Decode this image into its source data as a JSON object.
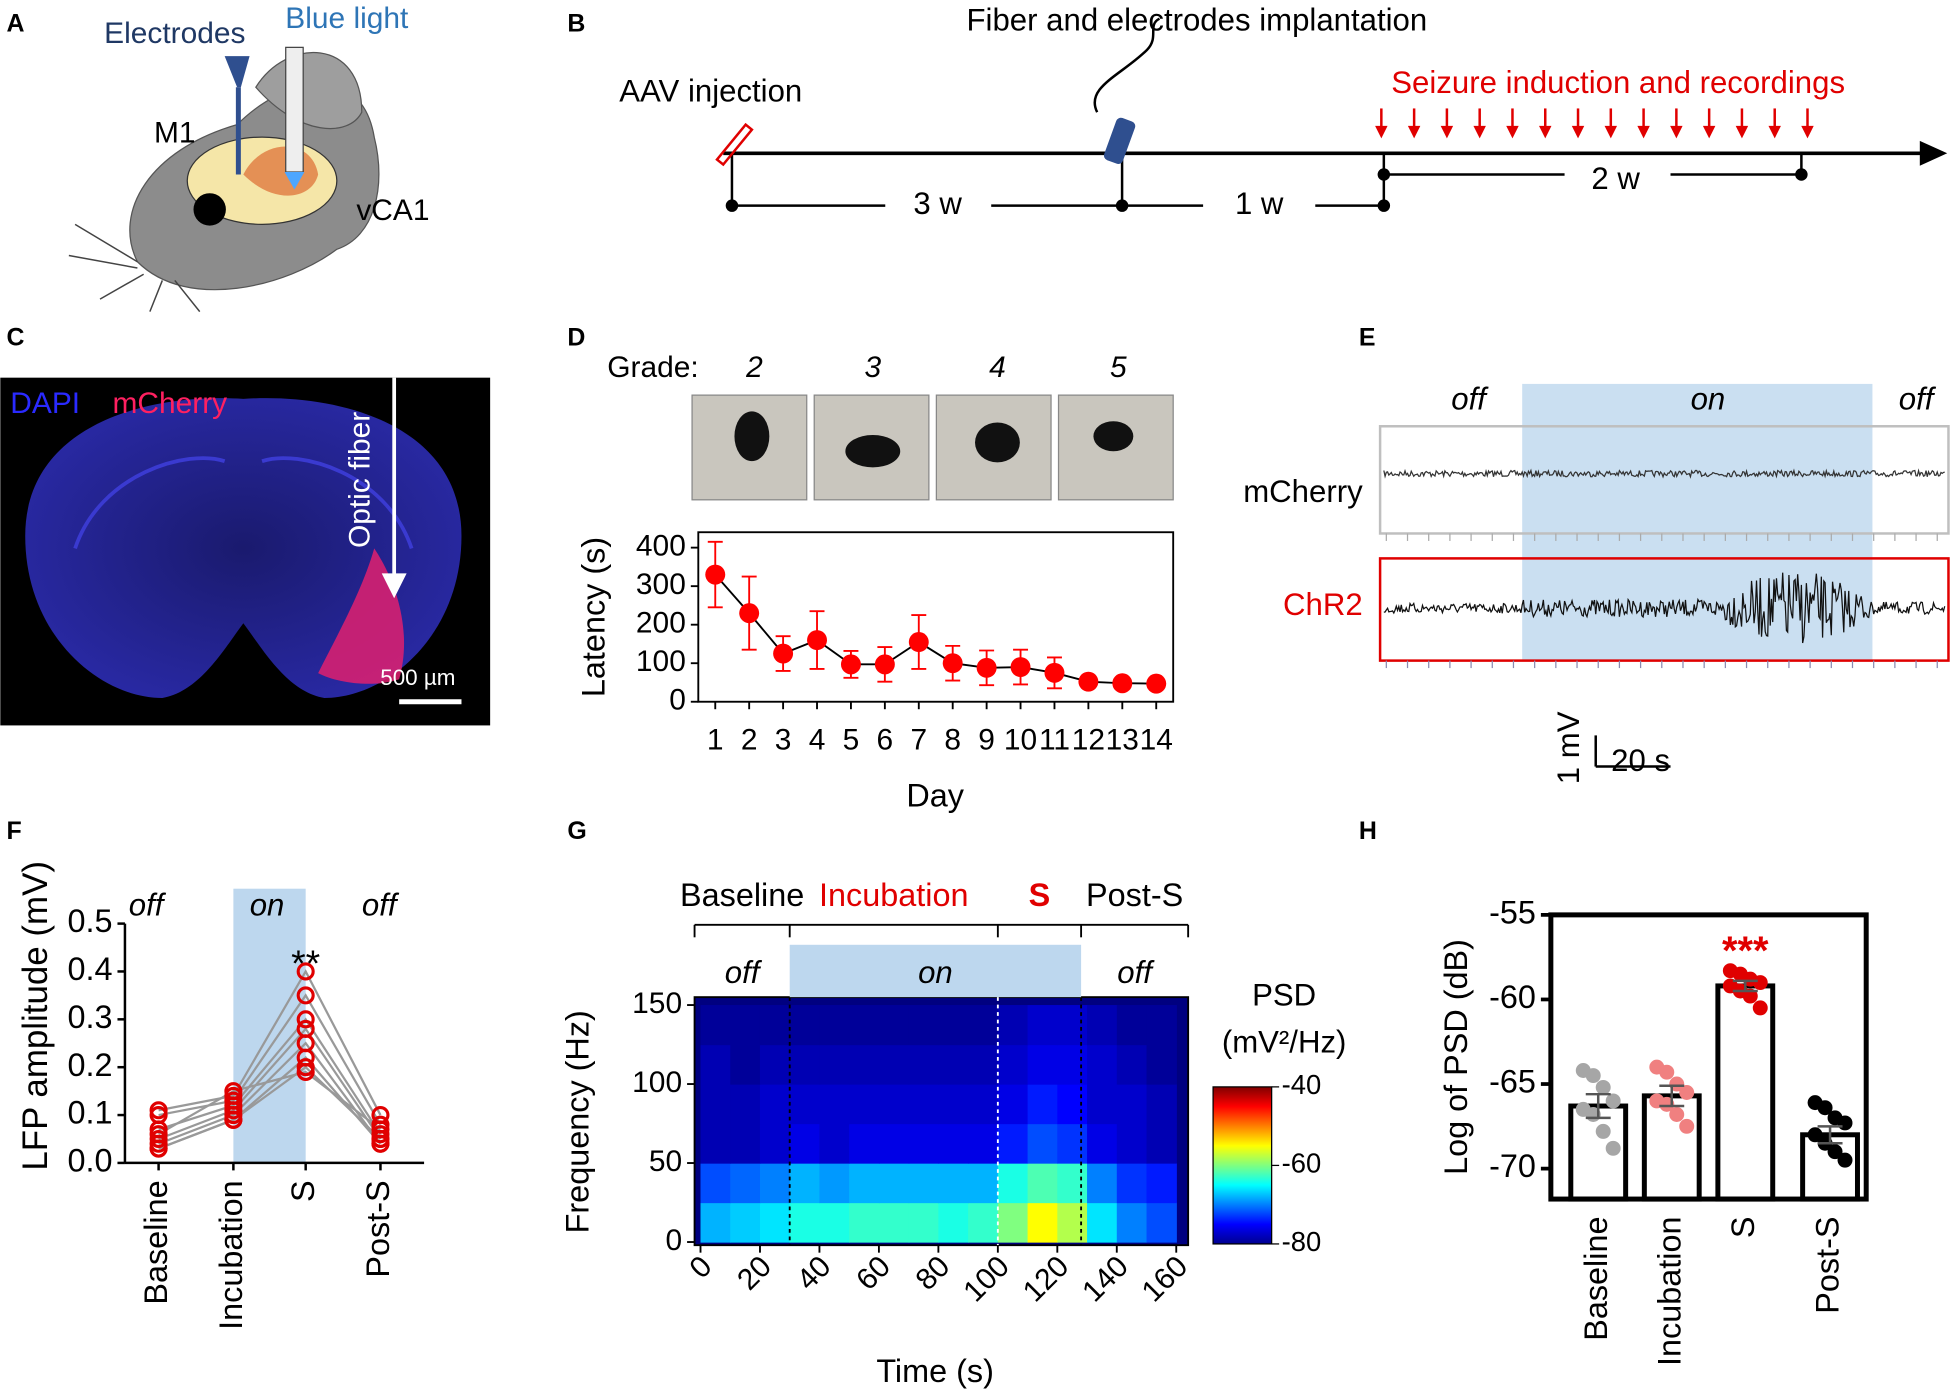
{
  "panel_labels": [
    "A",
    "B",
    "C",
    "D",
    "E",
    "F",
    "G",
    "H"
  ],
  "panel_a": {
    "electrodes": "Electrodes",
    "blue_light": "Blue light",
    "m1": "M1",
    "vca1": "vCA1"
  },
  "panel_b": {
    "aav": "AAV injection",
    "implant": "Fiber and electrodes implantation",
    "seizure": "Seizure induction and recordings",
    "durations": [
      "3 w",
      "1 w",
      "2 w"
    ]
  },
  "panel_c": {
    "dapi": "DAPI",
    "mcherry": "mCherry",
    "fiber": "Optic fiber",
    "scale": "500 µm"
  },
  "panel_d_grades": {
    "label": "Grade:",
    "grades": [
      "2",
      "3",
      "4",
      "5"
    ]
  },
  "panel_e": {
    "states": [
      "off",
      "on",
      "off"
    ],
    "traces": [
      "mCherry",
      "ChR2"
    ],
    "scale_v": "1 mV",
    "scale_t": "20 s"
  },
  "chart_data": [
    {
      "type": "line",
      "xlabel": "Day",
      "ylabel": "Latency (s)",
      "x": [
        1,
        2,
        3,
        4,
        5,
        6,
        7,
        8,
        9,
        10,
        11,
        12,
        13,
        14
      ],
      "values": [
        330,
        230,
        125,
        160,
        97,
        97,
        155,
        100,
        88,
        90,
        75,
        52,
        48,
        47
      ],
      "errors": [
        85,
        95,
        45,
        75,
        35,
        45,
        70,
        45,
        45,
        45,
        40,
        10,
        8,
        8
      ],
      "color": "#ff0000",
      "xlim": [
        0.5,
        14.5
      ],
      "ylim": [
        0,
        440
      ],
      "yticks": [
        0,
        100,
        200,
        300,
        400
      ]
    },
    {
      "type": "paired",
      "ylabel": "LFP amplitude (mV)",
      "categories": [
        "Baseline",
        "Incubation",
        "S",
        "Post-S"
      ],
      "series": [
        {
          "values": [
            0.11,
            0.14,
            0.4,
            0.1
          ]
        },
        {
          "values": [
            0.1,
            0.13,
            0.35,
            0.08
          ]
        },
        {
          "values": [
            0.07,
            0.12,
            0.3,
            0.06
          ]
        },
        {
          "values": [
            0.05,
            0.11,
            0.28,
            0.05
          ]
        },
        {
          "values": [
            0.04,
            0.1,
            0.25,
            0.04
          ]
        },
        {
          "values": [
            0.03,
            0.09,
            0.22,
            0.04
          ]
        },
        {
          "values": [
            0.03,
            0.09,
            0.2,
            0.05
          ]
        },
        {
          "values": [
            0.06,
            0.15,
            0.19,
            0.07
          ]
        }
      ],
      "color": "#e00000",
      "line_color": "#999999",
      "annotation": "**",
      "states": [
        "off",
        "on",
        "off"
      ],
      "ylim": [
        0,
        0.5
      ],
      "yticks": [
        {
          "value": 0,
          "label": "0.0"
        },
        0.1,
        0.2,
        0.3,
        0.4,
        0.5
      ]
    },
    {
      "type": "heatmap",
      "xlabel": "Time (s)",
      "ylabel": "Frequency (Hz)",
      "phases": [
        "Baseline",
        "Incubation",
        "S",
        "Post-S"
      ],
      "phase_colors": [
        "#000000",
        "#e00000",
        "#e00000",
        "#000000"
      ],
      "states": [
        "off",
        "on",
        "off"
      ],
      "colorbar_title": "PSD",
      "colorbar_units": "(mV²/Hz)",
      "x_edges": [
        0,
        10,
        20,
        30,
        40,
        50,
        60,
        70,
        80,
        90,
        100,
        110,
        120,
        130,
        140,
        150,
        160
      ],
      "y_edges": [
        0,
        25,
        50,
        75,
        100,
        125,
        150
      ],
      "z": [
        [
          -68,
          -67,
          -66,
          -64,
          -64,
          -63,
          -63,
          -63,
          -64,
          -63,
          -60,
          -55,
          -58,
          -66,
          -70,
          -72
        ],
        [
          -72,
          -71,
          -70,
          -68,
          -69,
          -68,
          -68,
          -68,
          -68,
          -68,
          -64,
          -62,
          -63,
          -70,
          -73,
          -74
        ],
        [
          -78,
          -78,
          -77,
          -76,
          -77,
          -76,
          -76,
          -76,
          -76,
          -76,
          -74,
          -72,
          -73,
          -76,
          -77,
          -78
        ],
        [
          -78,
          -78,
          -77,
          -77,
          -77,
          -77,
          -77,
          -77,
          -77,
          -77,
          -76,
          -74,
          -75,
          -77,
          -77,
          -78
        ],
        [
          -78,
          -79,
          -78,
          -78,
          -78,
          -78,
          -78,
          -78,
          -78,
          -78,
          -77,
          -76,
          -76,
          -77,
          -78,
          -79
        ],
        [
          -79,
          -79,
          -79,
          -79,
          -79,
          -79,
          -79,
          -79,
          -79,
          -79,
          -78,
          -77,
          -77,
          -78,
          -79,
          -79
        ]
      ],
      "zlim": [
        -80,
        -40
      ],
      "zticks": [
        -40,
        -60,
        -80
      ],
      "xlim": [
        -2,
        164
      ],
      "xticks": [
        0,
        20,
        40,
        60,
        80,
        100,
        120,
        140,
        160
      ],
      "ylim": [
        -2,
        155
      ],
      "yticks": [
        0,
        50,
        100,
        150
      ],
      "vlines": [
        30,
        100,
        128
      ]
    },
    {
      "type": "bar",
      "ylabel": "Log of PSD (dB)",
      "categories": [
        "Baseline",
        "Incubation",
        "S",
        "Post-S"
      ],
      "values": [
        -66.3,
        -65.7,
        -59.2,
        -68.0
      ],
      "errors": [
        0.7,
        0.6,
        0.3,
        0.5
      ],
      "points": [
        [
          -64.2,
          -64.5,
          -65.2,
          -66.0,
          -66.5,
          -66.8,
          -67.8,
          -68.8
        ],
        [
          -64.0,
          -64.3,
          -65.0,
          -65.5,
          -66.0,
          -66.2,
          -66.8,
          -67.5
        ],
        [
          -58.3,
          -58.5,
          -58.8,
          -59.0,
          -59.2,
          -59.5,
          -59.8,
          -60.5
        ],
        [
          -66.1,
          -66.4,
          -67.0,
          -67.3,
          -68.0,
          -68.5,
          -69.0,
          -69.5
        ]
      ],
      "point_colors": [
        "#a6a6a6",
        "#f08080",
        "#e00000",
        "#000000"
      ],
      "annotation": "***",
      "annotation_color": "#e00000",
      "ylim": [
        -71.8,
        -55
      ],
      "yticks": [
        -55,
        -60,
        -65,
        -70
      ]
    }
  ]
}
